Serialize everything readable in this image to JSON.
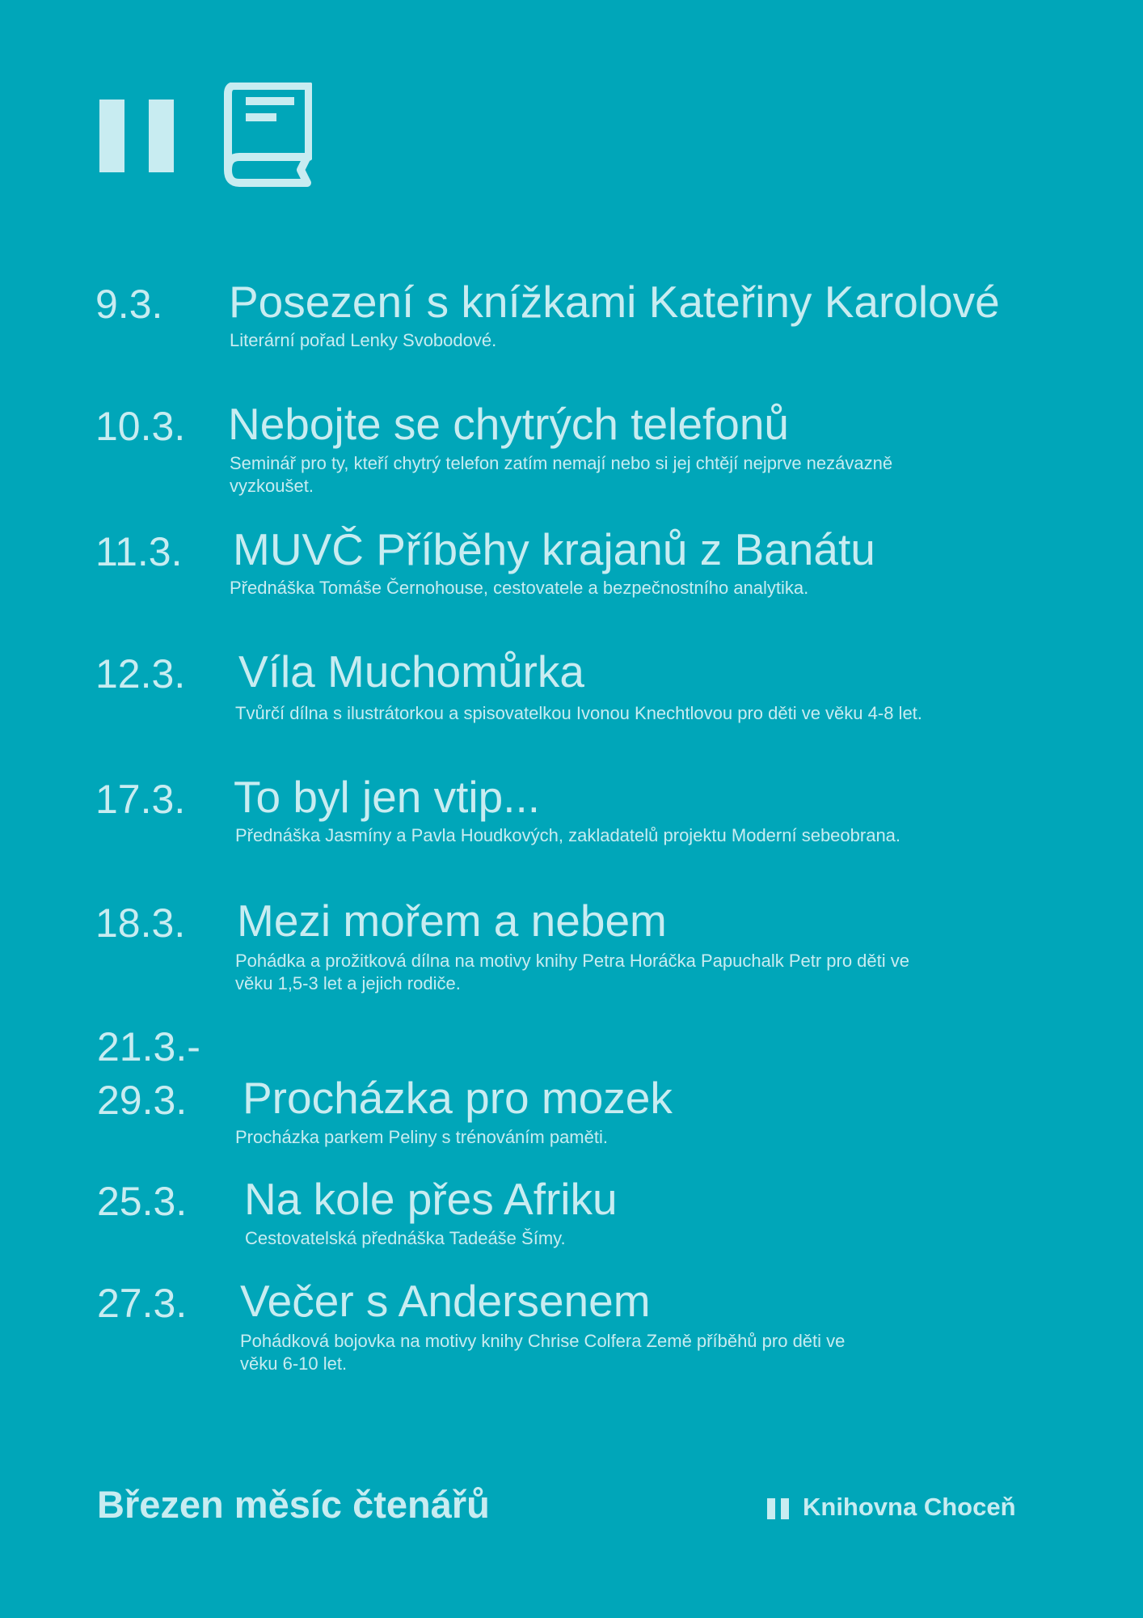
{
  "colors": {
    "background": "#00a6b9",
    "text": "#c8ecf1"
  },
  "header": {
    "icons": [
      "library-logo-bars-icon",
      "book-icon"
    ]
  },
  "events": [
    {
      "date": "9.3.",
      "title": "Posezení s knížkami Kateřiny Karolové",
      "description": "Literární pořad Lenky Svobodové."
    },
    {
      "date": "10.3.",
      "title": "Nebojte se chytrých telefonů",
      "description": "Seminář pro ty, kteří chytrý telefon zatím nemají nebo si jej chtějí nejprve nezávazně vyzkoušet."
    },
    {
      "date": "11.3.",
      "title": "MUVČ Příběhy krajanů z Banátu",
      "description": "Přednáška Tomáše Černohouse, cestovatele a bezpečnostního analytika."
    },
    {
      "date": "12.3.",
      "title": "Víla Muchomůrka",
      "description": "Tvůrčí dílna s ilustrátorkou a spisovatelkou Ivonou Knechtlovou pro děti ve věku 4-8 let."
    },
    {
      "date": "17.3.",
      "title": "To byl jen vtip...",
      "description": "Přednáška Jasmíny a Pavla Houdkových, zakladatelů projektu Moderní sebeobrana."
    },
    {
      "date": "18.3.",
      "title": "Mezi mořem a nebem",
      "description": "Pohádka a prožitková dílna na motivy knihy Petra Horáčka Papuchalk Petr pro děti ve věku 1,5-3 let a jejich rodiče."
    },
    {
      "date_start": "21.3.-",
      "date": "29.3.",
      "title": "Procházka pro mozek",
      "description": "Procházka parkem Peliny s trénováním paměti."
    },
    {
      "date": "25.3.",
      "title": "Na kole přes Afriku",
      "description": "Cestovatelská přednáška Tadeáše Šímy."
    },
    {
      "date": "27.3.",
      "title": "Večer s Andersenem",
      "description": "Pohádková bojovka na motivy knihy Chrise Colfera  Země příběhů pro děti ve věku 6-10 let."
    }
  ],
  "footer": {
    "campaign": "Březen měsíc čtenářů",
    "library_name": "Knihovna Choceň"
  }
}
